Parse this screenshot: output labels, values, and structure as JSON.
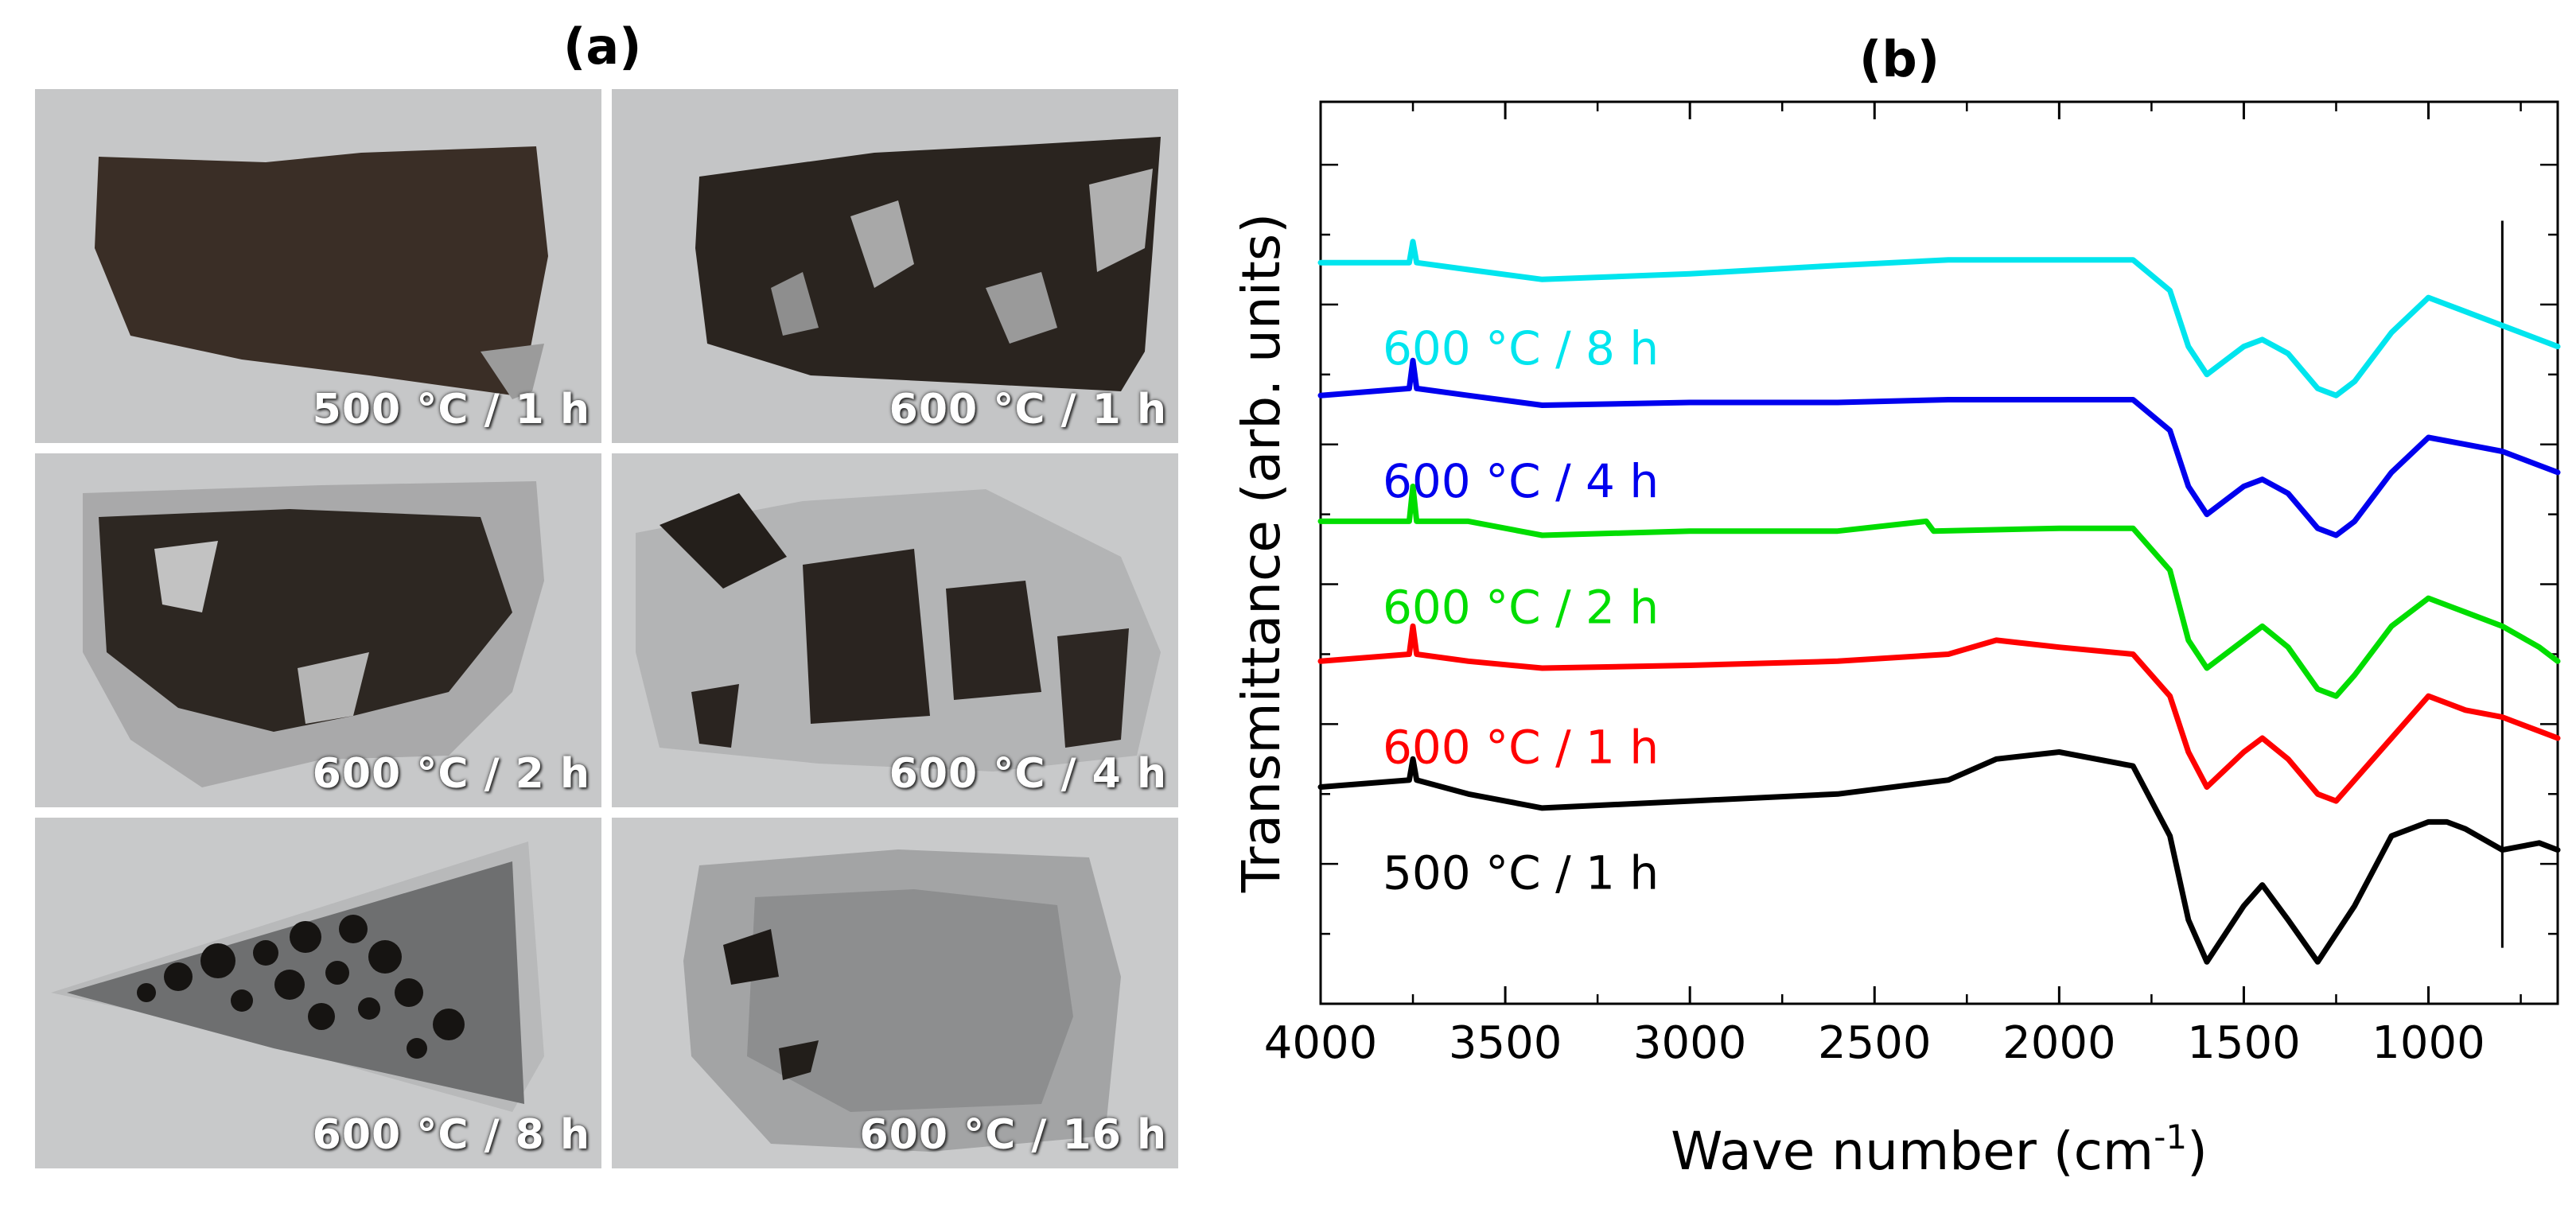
{
  "panel_a": {
    "title": "(a)",
    "photos": [
      {
        "caption": "500 °C / 1 h"
      },
      {
        "caption": "600 °C / 1 h"
      },
      {
        "caption": "600 °C / 2 h"
      },
      {
        "caption": "600 °C / 4 h"
      },
      {
        "caption": "600 °C / 8 h"
      },
      {
        "caption": "600 °C / 16 h"
      }
    ]
  },
  "chart_data": {
    "type": "line",
    "title": "(b)",
    "xlabel": "Wave number (cm",
    "xlabel_sup": "-1",
    "xlabel_end": ")",
    "ylabel": "Transmittance (arb. units)",
    "xlim": [
      4000,
      650
    ],
    "ylim": [
      0,
      6.45
    ],
    "x_ticks": [
      4000,
      3500,
      3000,
      2500,
      2000,
      1500,
      1000
    ],
    "x_tick_labels": [
      "4000",
      "3500",
      "3000",
      "2500",
      "2000",
      "1500",
      "1000"
    ],
    "reference_line_x": 800,
    "series": [
      {
        "name": "500 °C / 1 h",
        "color": "#000000",
        "x": [
          4000,
          3760,
          3750,
          3740,
          3600,
          3400,
          3000,
          2600,
          2300,
          2170,
          2000,
          1800,
          1700,
          1650,
          1600,
          1500,
          1450,
          1380,
          1300,
          1200,
          1100,
          1000,
          950,
          900,
          800,
          700,
          650
        ],
        "y": [
          1.55,
          1.6,
          1.75,
          1.6,
          1.5,
          1.4,
          1.45,
          1.5,
          1.6,
          1.75,
          1.8,
          1.7,
          1.2,
          0.6,
          0.3,
          0.7,
          0.85,
          0.6,
          0.3,
          0.7,
          1.2,
          1.3,
          1.3,
          1.25,
          1.1,
          1.15,
          1.1
        ]
      },
      {
        "name": "600 °C / 1 h",
        "color": "#ff0000",
        "x": [
          4000,
          3760,
          3750,
          3740,
          3600,
          3400,
          3000,
          2600,
          2300,
          2170,
          2000,
          1800,
          1700,
          1650,
          1600,
          1500,
          1450,
          1380,
          1300,
          1250,
          1200,
          1100,
          1000,
          900,
          800,
          700,
          650
        ],
        "y": [
          2.45,
          2.5,
          2.7,
          2.5,
          2.45,
          2.4,
          2.42,
          2.45,
          2.5,
          2.6,
          2.55,
          2.5,
          2.2,
          1.8,
          1.55,
          1.8,
          1.9,
          1.75,
          1.5,
          1.45,
          1.6,
          1.9,
          2.2,
          2.1,
          2.05,
          1.95,
          1.9
        ]
      },
      {
        "name": "600 °C / 2 h",
        "color": "#00dd00",
        "x": [
          4000,
          3760,
          3750,
          3740,
          3600,
          3400,
          3000,
          2600,
          2360,
          2340,
          2000,
          1800,
          1700,
          1650,
          1600,
          1500,
          1450,
          1380,
          1300,
          1250,
          1200,
          1100,
          1000,
          900,
          800,
          700,
          650
        ],
        "y": [
          3.45,
          3.45,
          3.7,
          3.45,
          3.45,
          3.35,
          3.38,
          3.38,
          3.45,
          3.38,
          3.4,
          3.4,
          3.1,
          2.6,
          2.4,
          2.6,
          2.7,
          2.55,
          2.25,
          2.2,
          2.35,
          2.7,
          2.9,
          2.8,
          2.7,
          2.55,
          2.45
        ]
      },
      {
        "name": "600 °C / 4 h",
        "color": "#0000ee",
        "x": [
          4000,
          3760,
          3750,
          3740,
          3600,
          3400,
          3000,
          2600,
          2300,
          2000,
          1800,
          1700,
          1650,
          1600,
          1500,
          1450,
          1380,
          1300,
          1250,
          1200,
          1100,
          1000,
          900,
          800,
          700,
          650
        ],
        "y": [
          4.35,
          4.4,
          4.6,
          4.4,
          4.35,
          4.28,
          4.3,
          4.3,
          4.32,
          4.32,
          4.32,
          4.1,
          3.7,
          3.5,
          3.7,
          3.75,
          3.65,
          3.4,
          3.35,
          3.45,
          3.8,
          4.05,
          4.0,
          3.95,
          3.85,
          3.8
        ]
      },
      {
        "name": "600 °C / 8 h",
        "color": "#00e5ee",
        "x": [
          4000,
          3760,
          3750,
          3740,
          3600,
          3400,
          3000,
          2600,
          2300,
          2000,
          1800,
          1700,
          1650,
          1600,
          1500,
          1450,
          1380,
          1300,
          1250,
          1200,
          1100,
          1000,
          900,
          800,
          700,
          650
        ],
        "y": [
          5.3,
          5.3,
          5.45,
          5.3,
          5.25,
          5.18,
          5.22,
          5.28,
          5.32,
          5.32,
          5.32,
          5.1,
          4.7,
          4.5,
          4.7,
          4.75,
          4.65,
          4.4,
          4.35,
          4.45,
          4.8,
          5.05,
          4.95,
          4.85,
          4.75,
          4.7
        ]
      }
    ],
    "annotations": [
      {
        "text": "500 °C / 1 h",
        "series": 0
      },
      {
        "text": "600 °C / 1 h",
        "series": 1
      },
      {
        "text": "600 °C / 2 h",
        "series": 2
      },
      {
        "text": "600 °C / 4 h",
        "series": 3
      },
      {
        "text": "600 °C / 8 h",
        "series": 4
      }
    ]
  }
}
